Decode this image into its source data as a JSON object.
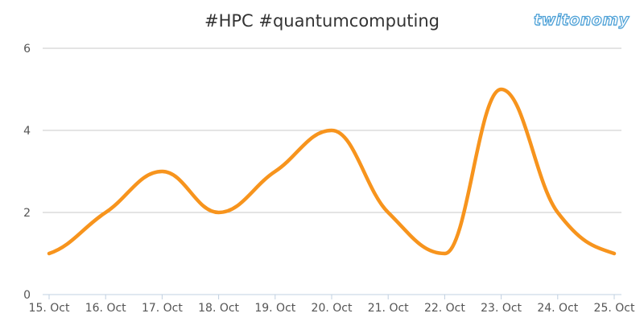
{
  "chart_data": {
    "type": "line",
    "title": "#HPC #quantumcomputing",
    "categories": [
      "15. Oct",
      "16. Oct",
      "17. Oct",
      "18. Oct",
      "19. Oct",
      "20. Oct",
      "21. Oct",
      "22. Oct",
      "23. Oct",
      "24. Oct",
      "25. Oct"
    ],
    "values": [
      1,
      2,
      3,
      2,
      3,
      4,
      2,
      1,
      5,
      2,
      1
    ],
    "ylim": [
      0,
      6
    ],
    "yticks": [
      0,
      2,
      4,
      6
    ],
    "xlabel": "",
    "ylabel": "",
    "grid": true,
    "legend": "none",
    "line_color": "#f7941d"
  },
  "logo_text": "twitonomy"
}
